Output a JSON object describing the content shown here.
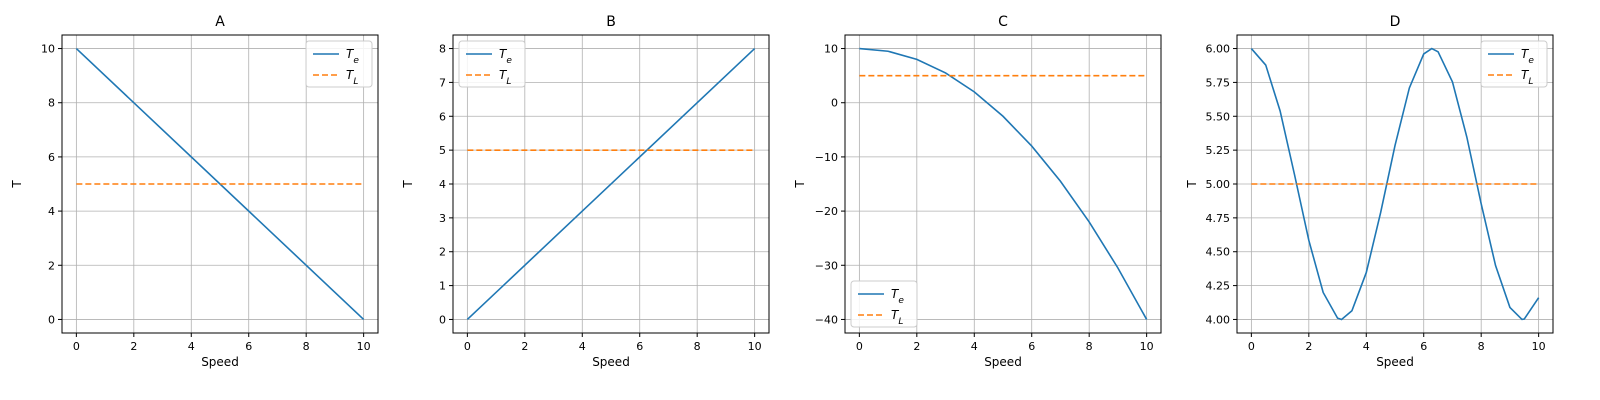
{
  "figure": {
    "background": "#ffffff"
  },
  "colors": {
    "te": "#1f77b4",
    "tl": "#ff7f0e",
    "grid": "#b0b0b0",
    "axis": "#000000"
  },
  "chart_data": [
    {
      "type": "line",
      "title": "A",
      "xlabel": "Speed",
      "ylabel": "T",
      "xlim": [
        -0.5,
        10.5
      ],
      "ylim": [
        -0.5,
        10.5
      ],
      "xticks": [
        0,
        2,
        4,
        6,
        8,
        10
      ],
      "yticks": [
        0,
        2,
        4,
        6,
        8,
        10
      ],
      "ytick_labels": [
        "0",
        "2",
        "4",
        "6",
        "8",
        "10"
      ],
      "grid": true,
      "legend": "top-right",
      "series": [
        {
          "name": "T_e",
          "style": "solid",
          "x": [
            0,
            10
          ],
          "y": [
            10,
            0
          ]
        },
        {
          "name": "T_L",
          "style": "dashed",
          "x": [
            0,
            10
          ],
          "y": [
            5,
            5
          ]
        }
      ]
    },
    {
      "type": "line",
      "title": "B",
      "xlabel": "Speed",
      "ylabel": "T",
      "xlim": [
        -0.5,
        10.5
      ],
      "ylim": [
        -0.4,
        8.4
      ],
      "xticks": [
        0,
        2,
        4,
        6,
        8,
        10
      ],
      "yticks": [
        0,
        1,
        2,
        3,
        4,
        5,
        6,
        7,
        8
      ],
      "ytick_labels": [
        "0",
        "1",
        "2",
        "3",
        "4",
        "5",
        "6",
        "7",
        "8"
      ],
      "grid": true,
      "legend": "top-left",
      "series": [
        {
          "name": "T_e",
          "style": "solid",
          "x": [
            0,
            10
          ],
          "y": [
            0,
            8
          ]
        },
        {
          "name": "T_L",
          "style": "dashed",
          "x": [
            0,
            10
          ],
          "y": [
            5,
            5
          ]
        }
      ]
    },
    {
      "type": "line",
      "title": "C",
      "xlabel": "Speed",
      "ylabel": "T",
      "xlim": [
        -0.5,
        10.5
      ],
      "ylim": [
        -42.5,
        12.5
      ],
      "xticks": [
        0,
        2,
        4,
        6,
        8,
        10
      ],
      "yticks": [
        -40,
        -30,
        -20,
        -10,
        0,
        10
      ],
      "ytick_labels": [
        "−40",
        "−30",
        "−20",
        "−10",
        "0",
        "10"
      ],
      "grid": true,
      "legend": "bottom-left",
      "series": [
        {
          "name": "T_e",
          "style": "solid",
          "x": [
            0,
            1,
            2,
            3,
            4,
            5,
            6,
            7,
            8,
            9,
            10
          ],
          "y": [
            10,
            9.5,
            8,
            5.5,
            2,
            -2.5,
            -8,
            -14.5,
            -22,
            -30.5,
            -40
          ]
        },
        {
          "name": "T_L",
          "style": "dashed",
          "x": [
            0,
            10
          ],
          "y": [
            5,
            5
          ]
        }
      ]
    },
    {
      "type": "line",
      "title": "D",
      "xlabel": "Speed",
      "ylabel": "T",
      "xlim": [
        -0.5,
        10.5
      ],
      "ylim": [
        3.9,
        6.1
      ],
      "xticks": [
        0,
        2,
        4,
        6,
        8,
        10
      ],
      "yticks": [
        4.0,
        4.25,
        4.5,
        4.75,
        5.0,
        5.25,
        5.5,
        5.75,
        6.0
      ],
      "ytick_labels": [
        "4.00",
        "4.25",
        "4.50",
        "4.75",
        "5.00",
        "5.25",
        "5.50",
        "5.75",
        "6.00"
      ],
      "grid": true,
      "legend": "top-right",
      "series": [
        {
          "name": "T_e",
          "style": "solid",
          "x": [
            0,
            0.5,
            1,
            1.5,
            2,
            2.5,
            3,
            3.14,
            3.5,
            4,
            4.5,
            5,
            5.5,
            6,
            6.28,
            6.5,
            7,
            7.5,
            8,
            8.5,
            9,
            9.42,
            9.5,
            10
          ],
          "y": [
            6.0,
            5.878,
            5.54,
            5.071,
            4.584,
            4.199,
            4.01,
            4.0,
            4.064,
            4.346,
            4.789,
            5.284,
            5.709,
            5.96,
            6.0,
            5.976,
            5.754,
            5.347,
            4.854,
            4.398,
            4.089,
            4.0,
            4.003,
            4.161
          ]
        },
        {
          "name": "T_L",
          "style": "dashed",
          "x": [
            0,
            10
          ],
          "y": [
            5,
            5
          ]
        }
      ]
    }
  ]
}
